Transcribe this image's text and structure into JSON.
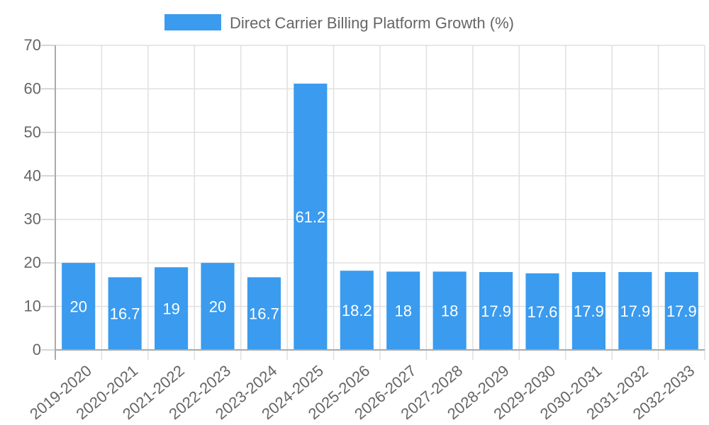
{
  "legend": {
    "label": "Direct Carrier Billing Platform Growth (%)",
    "color": "#3a9bef"
  },
  "chart_data": {
    "type": "bar",
    "title": "",
    "xlabel": "",
    "ylabel": "",
    "ylim": [
      0,
      70
    ],
    "yticks": [
      0,
      10,
      20,
      30,
      40,
      50,
      60,
      70
    ],
    "grid": true,
    "legend_position": "top",
    "categories": [
      "2019-2020",
      "2020-2021",
      "2021-2022",
      "2022-2023",
      "2023-2024",
      "2024-2025",
      "2025-2026",
      "2026-2027",
      "2027-2028",
      "2028-2029",
      "2029-2030",
      "2030-2031",
      "2031-2032",
      "2032-2033"
    ],
    "series": [
      {
        "name": "Direct Carrier Billing Platform Growth (%)",
        "color": "#3a9bef",
        "values": [
          20,
          16.7,
          19,
          20,
          16.7,
          61.2,
          18.2,
          18,
          18,
          17.9,
          17.6,
          17.9,
          17.9,
          17.9
        ]
      }
    ]
  }
}
